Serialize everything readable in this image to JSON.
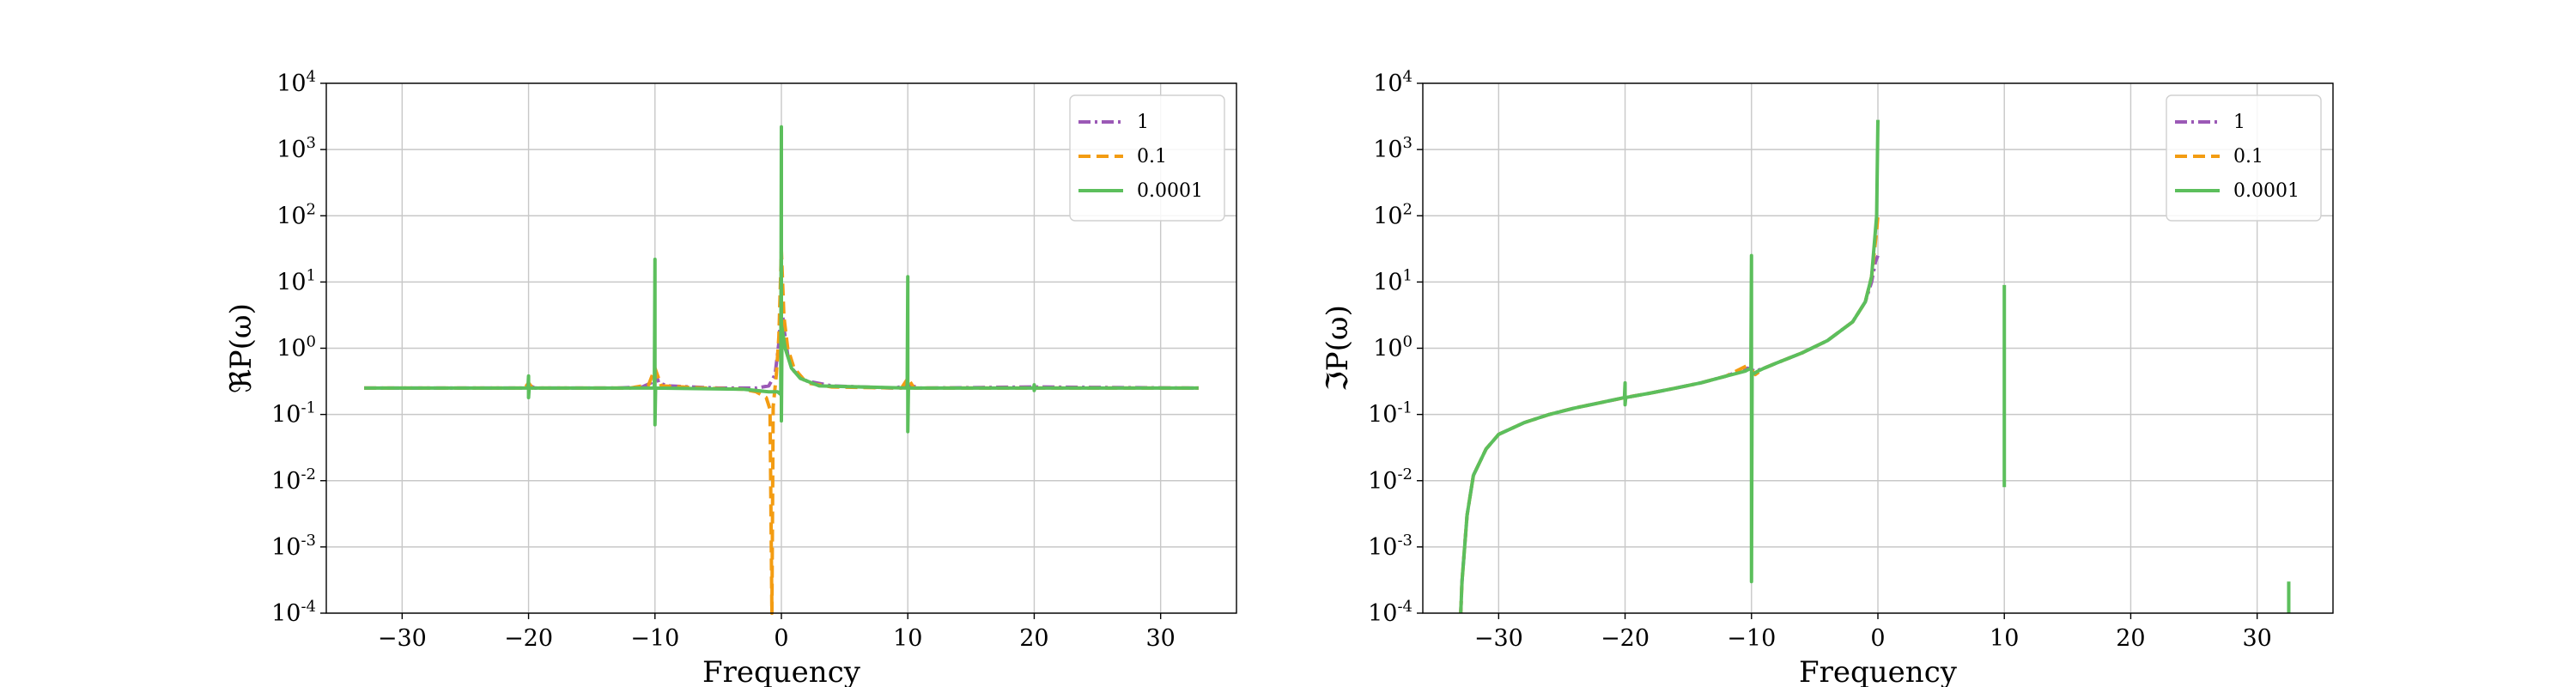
{
  "chart_data": [
    {
      "type": "line",
      "xlabel": "Frequency",
      "ylabel": "ℜP(ω)",
      "yscale": "log",
      "xlim": [
        -36,
        36
      ],
      "ylim": [
        0.0001,
        10000
      ],
      "xticks": [
        -30,
        -20,
        -10,
        0,
        10,
        20,
        30
      ],
      "xtick_labels": [
        "−30",
        "−20",
        "−10",
        "0",
        "10",
        "20",
        "30"
      ],
      "yticks": [
        {
          "base": "10",
          "exp": "-4"
        },
        {
          "base": "10",
          "exp": "-3"
        },
        {
          "base": "10",
          "exp": "-2"
        },
        {
          "base": "10",
          "exp": "-1"
        },
        {
          "base": "10",
          "exp": "0"
        },
        {
          "base": "10",
          "exp": "1"
        },
        {
          "base": "10",
          "exp": "2"
        },
        {
          "base": "10",
          "exp": "3"
        },
        {
          "base": "10",
          "exp": "4"
        }
      ],
      "grid": true,
      "legend_position": "top-right",
      "series": [
        {
          "name": "1",
          "color": "#9b59b6",
          "style": "dashdot",
          "points": [
            [
              -33,
              0.25
            ],
            [
              -20.5,
              0.25
            ],
            [
              -20,
              0.28
            ],
            [
              -19.5,
              0.25
            ],
            [
              -13,
              0.25
            ],
            [
              -11,
              0.26
            ],
            [
              -10.3,
              0.3
            ],
            [
              -10,
              0.45
            ],
            [
              -9.7,
              0.3
            ],
            [
              -9,
              0.27
            ],
            [
              -5,
              0.25
            ],
            [
              -2,
              0.25
            ],
            [
              -1,
              0.27
            ],
            [
              -0.5,
              0.4
            ],
            [
              -0.2,
              1.2
            ],
            [
              0,
              5
            ],
            [
              0.2,
              2
            ],
            [
              0.5,
              0.8
            ],
            [
              1,
              0.45
            ],
            [
              2,
              0.32
            ],
            [
              4,
              0.27
            ],
            [
              9,
              0.25
            ],
            [
              10,
              0.28
            ],
            [
              11,
              0.25
            ],
            [
              20,
              0.26
            ],
            [
              33,
              0.25
            ]
          ]
        },
        {
          "name": "0.1",
          "color": "#f39c12",
          "style": "dashed",
          "points": [
            [
              -33,
              0.25
            ],
            [
              -20.3,
              0.25
            ],
            [
              -20,
              0.3
            ],
            [
              -19.7,
              0.25
            ],
            [
              -12,
              0.25
            ],
            [
              -10.5,
              0.28
            ],
            [
              -10,
              0.5
            ],
            [
              -9.5,
              0.27
            ],
            [
              -6,
              0.25
            ],
            [
              -3,
              0.24
            ],
            [
              -2,
              0.22
            ],
            [
              -1.2,
              0.18
            ],
            [
              -0.9,
              0.12
            ],
            [
              -0.75,
              0.0001
            ],
            [
              -0.65,
              0.13
            ],
            [
              -0.4,
              0.4
            ],
            [
              -0.2,
              1.5
            ],
            [
              0,
              30
            ],
            [
              0.2,
              3
            ],
            [
              0.5,
              1
            ],
            [
              1,
              0.5
            ],
            [
              2,
              0.3
            ],
            [
              4,
              0.26
            ],
            [
              9.5,
              0.25
            ],
            [
              10,
              0.35
            ],
            [
              10.5,
              0.25
            ],
            [
              20,
              0.25
            ],
            [
              33,
              0.25
            ]
          ]
        },
        {
          "name": "0.0001",
          "color": "#5cbf5c",
          "style": "solid",
          "points": [
            [
              -33,
              0.25
            ],
            [
              -20.05,
              0.25
            ],
            [
              -20,
              0.38
            ],
            [
              -20,
              0.18
            ],
            [
              -19.95,
              0.25
            ],
            [
              -10.05,
              0.25
            ],
            [
              -10,
              22
            ],
            [
              -10,
              0.07
            ],
            [
              -9.95,
              0.25
            ],
            [
              -3,
              0.24
            ],
            [
              -1,
              0.22
            ],
            [
              -0.3,
              0.22
            ],
            [
              -0.05,
              0.2
            ],
            [
              0,
              2200
            ],
            [
              0,
              0.08
            ],
            [
              0.05,
              2
            ],
            [
              0.3,
              1
            ],
            [
              0.8,
              0.5
            ],
            [
              1.5,
              0.35
            ],
            [
              3,
              0.27
            ],
            [
              9.95,
              0.25
            ],
            [
              10,
              12
            ],
            [
              10,
              0.055
            ],
            [
              10.05,
              0.25
            ],
            [
              19.95,
              0.25
            ],
            [
              20,
              0.28
            ],
            [
              20,
              0.23
            ],
            [
              20.05,
              0.25
            ],
            [
              33,
              0.25
            ]
          ]
        }
      ]
    },
    {
      "type": "line",
      "xlabel": "Frequency",
      "ylabel": "ℑP(ω)",
      "yscale": "log",
      "xlim": [
        -36,
        36
      ],
      "ylim": [
        0.0001,
        10000
      ],
      "xticks": [
        -30,
        -20,
        -10,
        0,
        10,
        20,
        30
      ],
      "xtick_labels": [
        "−30",
        "−20",
        "−10",
        "0",
        "10",
        "20",
        "30"
      ],
      "yticks": [
        {
          "base": "10",
          "exp": "-4"
        },
        {
          "base": "10",
          "exp": "-3"
        },
        {
          "base": "10",
          "exp": "-2"
        },
        {
          "base": "10",
          "exp": "-1"
        },
        {
          "base": "10",
          "exp": "0"
        },
        {
          "base": "10",
          "exp": "1"
        },
        {
          "base": "10",
          "exp": "2"
        },
        {
          "base": "10",
          "exp": "3"
        },
        {
          "base": "10",
          "exp": "4"
        }
      ],
      "grid": true,
      "legend_position": "top-right",
      "series": [
        {
          "name": "1",
          "color": "#9b59b6",
          "style": "dashdot",
          "points": [
            [
              -33,
              0.0001
            ],
            [
              -32.9,
              0.0003
            ],
            [
              -32.5,
              0.003
            ],
            [
              -32,
              0.012
            ],
            [
              -31,
              0.03
            ],
            [
              -30,
              0.05
            ],
            [
              -28,
              0.075
            ],
            [
              -26,
              0.1
            ],
            [
              -24,
              0.125
            ],
            [
              -22,
              0.15
            ],
            [
              -20,
              0.18
            ],
            [
              -18,
              0.21
            ],
            [
              -16,
              0.25
            ],
            [
              -14,
              0.3
            ],
            [
              -12,
              0.38
            ],
            [
              -10.3,
              0.5
            ],
            [
              -9.7,
              0.45
            ],
            [
              -9,
              0.5
            ],
            [
              -8,
              0.6
            ],
            [
              -6,
              0.85
            ],
            [
              -4,
              1.3
            ],
            [
              -2,
              2.5
            ],
            [
              -1,
              5
            ],
            [
              -0.5,
              10
            ],
            [
              -0.2,
              20
            ],
            [
              0,
              25
            ]
          ]
        },
        {
          "name": "0.1",
          "color": "#f39c12",
          "style": "dashed",
          "points": [
            [
              -33,
              0.0001
            ],
            [
              -32.9,
              0.0003
            ],
            [
              -32.5,
              0.003
            ],
            [
              -32,
              0.012
            ],
            [
              -31,
              0.03
            ],
            [
              -30,
              0.05
            ],
            [
              -28,
              0.075
            ],
            [
              -26,
              0.1
            ],
            [
              -24,
              0.125
            ],
            [
              -22,
              0.15
            ],
            [
              -20,
              0.18
            ],
            [
              -18,
              0.21
            ],
            [
              -16,
              0.25
            ],
            [
              -14,
              0.3
            ],
            [
              -12,
              0.38
            ],
            [
              -10.3,
              0.55
            ],
            [
              -9.7,
              0.4
            ],
            [
              -9,
              0.5
            ],
            [
              -8,
              0.6
            ],
            [
              -6,
              0.85
            ],
            [
              -4,
              1.3
            ],
            [
              -2,
              2.5
            ],
            [
              -1,
              5
            ],
            [
              -0.5,
              12
            ],
            [
              -0.1,
              60
            ],
            [
              0,
              100
            ]
          ]
        },
        {
          "name": "0.0001",
          "color": "#5cbf5c",
          "style": "solid",
          "points": [
            [
              -33,
              0.0001
            ],
            [
              -32.9,
              0.0003
            ],
            [
              -32.5,
              0.003
            ],
            [
              -32,
              0.012
            ],
            [
              -31,
              0.03
            ],
            [
              -30,
              0.05
            ],
            [
              -28,
              0.075
            ],
            [
              -26,
              0.1
            ],
            [
              -24,
              0.125
            ],
            [
              -22,
              0.15
            ],
            [
              -20.05,
              0.18
            ],
            [
              -20,
              0.3
            ],
            [
              -20,
              0.14
            ],
            [
              -19.95,
              0.18
            ],
            [
              -18,
              0.21
            ],
            [
              -16,
              0.25
            ],
            [
              -14,
              0.3
            ],
            [
              -12,
              0.38
            ],
            [
              -10.5,
              0.45
            ],
            [
              -10.05,
              0.5
            ],
            [
              -10,
              25
            ],
            [
              -10,
              0.0003
            ],
            [
              -9.95,
              0.4
            ],
            [
              -9.5,
              0.45
            ],
            [
              -9,
              0.5
            ],
            [
              -8,
              0.6
            ],
            [
              -6,
              0.85
            ],
            [
              -4,
              1.3
            ],
            [
              -2,
              2.5
            ],
            [
              -1,
              5
            ],
            [
              -0.5,
              12
            ],
            [
              -0.1,
              100
            ],
            [
              0,
              2800
            ]
          ]
        },
        {
          "name": "0.0001",
          "color": "#5cbf5c",
          "style": "solid",
          "legend": false,
          "points": [
            [
              10,
              9
            ],
            [
              10,
              0.008
            ]
          ]
        },
        {
          "name": "0.0001",
          "color": "#5cbf5c",
          "style": "solid",
          "legend": false,
          "points": [
            [
              32.5,
              0.0003
            ],
            [
              32.5,
              0.0001
            ]
          ]
        }
      ]
    }
  ]
}
